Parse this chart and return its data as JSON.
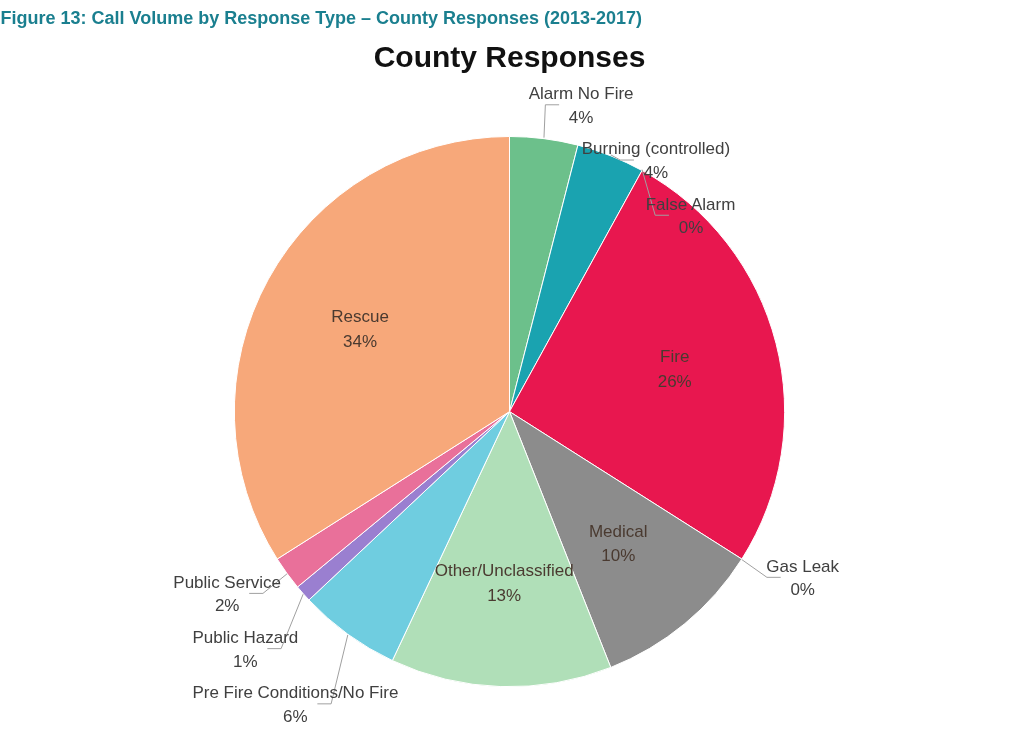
{
  "chart_data": {
    "type": "pie",
    "title": "County Responses",
    "annotations": [
      "Figure 13: Call Volume by Response Type – County Responses (2013-2017)"
    ],
    "categories": [
      "Alarm No Fire",
      "Burning (controlled)",
      "False Alarm",
      "Fire",
      "Gas Leak",
      "Medical",
      "Other/Unclassified",
      "Pre Fire Conditions/No Fire",
      "Public Hazard",
      "Public Service",
      "Rescue"
    ],
    "values": [
      4,
      4,
      0,
      26,
      0,
      10,
      13,
      6,
      1,
      2,
      34
    ],
    "value_labels": [
      "4%",
      "4%",
      "0%",
      "26%",
      "0%",
      "10%",
      "13%",
      "6%",
      "1%",
      "2%",
      "34%"
    ],
    "colors": [
      "#6cc08b",
      "#1aa3b0",
      "#2a8fa0",
      "#e8174f",
      "#f07f1a",
      "#8c8c8c",
      "#b0dfb8",
      "#6fcde0",
      "#9a7fd0",
      "#e9709a",
      "#f7a87a"
    ]
  }
}
